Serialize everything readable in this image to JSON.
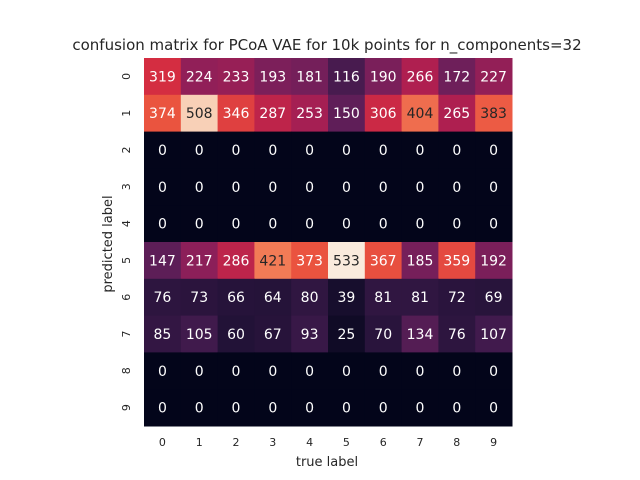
{
  "chart_data": {
    "type": "heatmap",
    "title": "confusion matrix for PCoA VAE for 10k points for n_components=32",
    "xlabel": "true label",
    "ylabel": "predicted label",
    "x_tick_labels": [
      "0",
      "1",
      "2",
      "3",
      "4",
      "5",
      "6",
      "7",
      "8",
      "9"
    ],
    "y_tick_labels": [
      "0",
      "1",
      "2",
      "3",
      "4",
      "5",
      "6",
      "7",
      "8",
      "9"
    ],
    "values": [
      [
        319,
        224,
        233,
        193,
        181,
        116,
        190,
        266,
        172,
        227
      ],
      [
        374,
        508,
        346,
        287,
        253,
        150,
        306,
        404,
        265,
        383
      ],
      [
        0,
        0,
        0,
        0,
        0,
        0,
        0,
        0,
        0,
        0
      ],
      [
        0,
        0,
        0,
        0,
        0,
        0,
        0,
        0,
        0,
        0
      ],
      [
        0,
        0,
        0,
        0,
        0,
        0,
        0,
        0,
        0,
        0
      ],
      [
        147,
        217,
        286,
        421,
        373,
        533,
        367,
        185,
        359,
        192
      ],
      [
        76,
        73,
        66,
        64,
        80,
        39,
        81,
        81,
        72,
        69
      ],
      [
        85,
        105,
        60,
        67,
        93,
        25,
        70,
        134,
        76,
        107
      ],
      [
        0,
        0,
        0,
        0,
        0,
        0,
        0,
        0,
        0,
        0
      ],
      [
        0,
        0,
        0,
        0,
        0,
        0,
        0,
        0,
        0,
        0
      ]
    ],
    "vmin": 0,
    "vmax": 533,
    "colormap": "rocket",
    "colorbar": false,
    "grid": false,
    "annotated": true
  },
  "colors": {
    "low": "#03051a",
    "high": "#faebdd",
    "text_dark": "#262626"
  }
}
